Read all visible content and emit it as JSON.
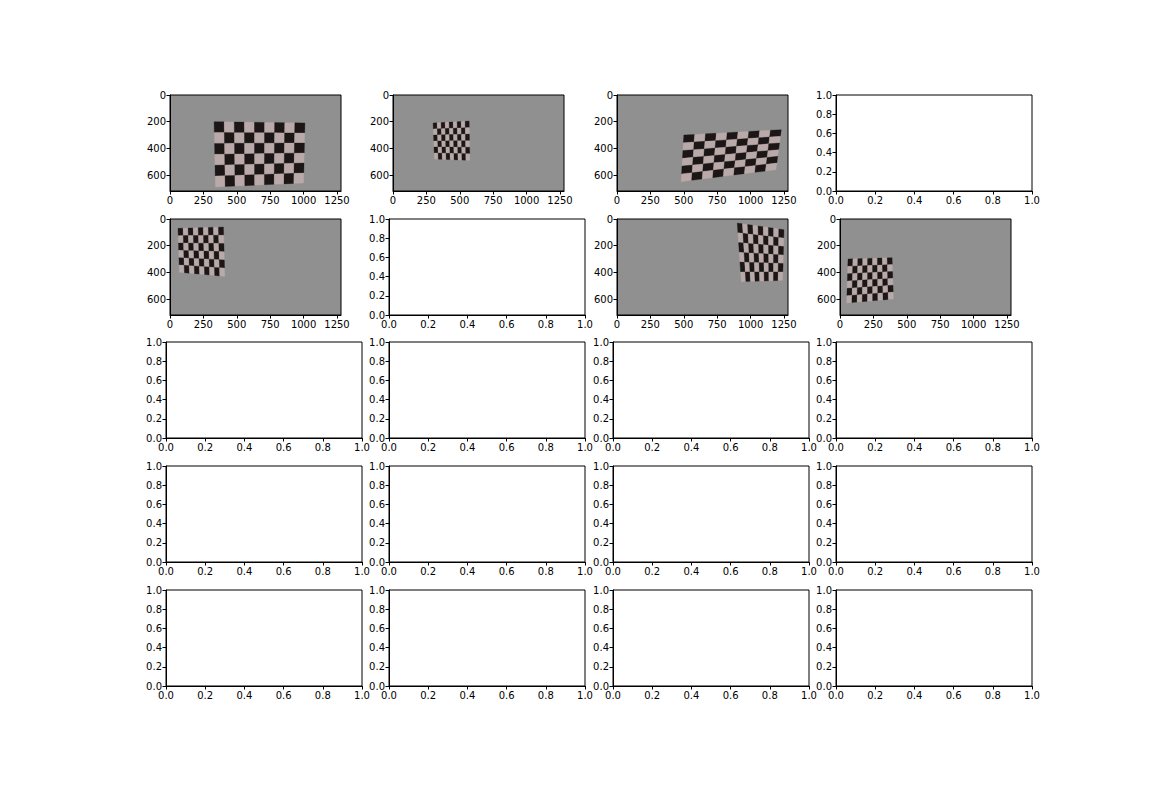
{
  "chart_data": [
    {
      "type": "image",
      "xlim": [
        0,
        1280
      ],
      "ylim": [
        720,
        0
      ],
      "xticks": [
        0,
        250,
        500,
        750,
        1000,
        1250
      ],
      "yticks": [
        0,
        200,
        400,
        600
      ],
      "board": {
        "corners": [
          [
            330,
            200
          ],
          [
            1010,
            210
          ],
          [
            1000,
            660
          ],
          [
            340,
            690
          ]
        ],
        "squares": [
          9,
          6
        ]
      }
    },
    {
      "type": "image",
      "xlim": [
        0,
        1280
      ],
      "ylim": [
        720,
        0
      ],
      "xticks": [
        0,
        250,
        500,
        750,
        1000,
        1250
      ],
      "yticks": [
        0,
        200,
        400,
        600
      ],
      "board": {
        "corners": [
          [
            300,
            210
          ],
          [
            570,
            195
          ],
          [
            575,
            490
          ],
          [
            310,
            480
          ]
        ],
        "squares": [
          9,
          6
        ]
      }
    },
    {
      "type": "image",
      "xlim": [
        0,
        1280
      ],
      "ylim": [
        720,
        0
      ],
      "xticks": [
        0,
        250,
        500,
        750,
        1000,
        1250
      ],
      "yticks": [
        0,
        200,
        400,
        600
      ],
      "board": {
        "corners": [
          [
            500,
            300
          ],
          [
            1230,
            260
          ],
          [
            1190,
            560
          ],
          [
            480,
            650
          ]
        ],
        "squares": [
          9,
          6
        ]
      }
    },
    {
      "type": "empty",
      "xlim": [
        0,
        1
      ],
      "ylim": [
        0,
        1
      ],
      "xticks": [
        {
          "value": 0,
          "label": "0.0"
        },
        {
          "value": 0.2,
          "label": "0.2"
        },
        {
          "value": 0.4,
          "label": "0.4"
        },
        {
          "value": 0.6,
          "label": "0.6"
        },
        {
          "value": 0.8,
          "label": "0.8"
        },
        {
          "value": 1,
          "label": "1.0"
        }
      ],
      "yticks": [
        {
          "value": 0,
          "label": "0.0"
        },
        {
          "value": 0.2,
          "label": "0.2"
        },
        {
          "value": 0.4,
          "label": "0.4"
        },
        {
          "value": 0.6,
          "label": "0.6"
        },
        {
          "value": 0.8,
          "label": "0.8"
        },
        {
          "value": 1,
          "label": "1.0"
        }
      ]
    },
    {
      "type": "image",
      "xlim": [
        0,
        1280
      ],
      "ylim": [
        720,
        0
      ],
      "xticks": [
        0,
        250,
        500,
        750,
        1000,
        1250
      ],
      "yticks": [
        0,
        200,
        400,
        600
      ],
      "board": {
        "corners": [
          [
            60,
            70
          ],
          [
            400,
            60
          ],
          [
            410,
            430
          ],
          [
            70,
            400
          ]
        ],
        "squares": [
          9,
          6
        ]
      }
    },
    {
      "type": "empty",
      "xlim": [
        0,
        1
      ],
      "ylim": [
        0,
        1
      ],
      "xticks": [
        {
          "value": 0,
          "label": "0.0"
        },
        {
          "value": 0.2,
          "label": "0.2"
        },
        {
          "value": 0.4,
          "label": "0.4"
        },
        {
          "value": 0.6,
          "label": "0.6"
        },
        {
          "value": 0.8,
          "label": "0.8"
        },
        {
          "value": 1,
          "label": "1.0"
        }
      ],
      "yticks": [
        {
          "value": 0,
          "label": "0.0"
        },
        {
          "value": 0.2,
          "label": "0.2"
        },
        {
          "value": 0.4,
          "label": "0.4"
        },
        {
          "value": 0.6,
          "label": "0.6"
        },
        {
          "value": 0.8,
          "label": "0.8"
        },
        {
          "value": 1,
          "label": "1.0"
        }
      ]
    },
    {
      "type": "image",
      "xlim": [
        0,
        1280
      ],
      "ylim": [
        720,
        0
      ],
      "xticks": [
        0,
        250,
        500,
        750,
        1000,
        1250
      ],
      "yticks": [
        0,
        200,
        400,
        600
      ],
      "board": {
        "corners": [
          [
            900,
            30
          ],
          [
            1250,
            80
          ],
          [
            1240,
            460
          ],
          [
            930,
            470
          ]
        ],
        "squares": [
          9,
          6
        ]
      }
    },
    {
      "type": "image",
      "xlim": [
        0,
        1280
      ],
      "ylim": [
        720,
        0
      ],
      "xticks": [
        0,
        250,
        500,
        750,
        1000,
        1250
      ],
      "yticks": [
        0,
        200,
        400,
        600
      ],
      "board": {
        "corners": [
          [
            60,
            300
          ],
          [
            390,
            290
          ],
          [
            400,
            600
          ],
          [
            50,
            630
          ]
        ],
        "squares": [
          9,
          6
        ]
      }
    },
    {
      "type": "empty",
      "xlim": [
        0,
        1
      ],
      "ylim": [
        0,
        1
      ],
      "xticks": [
        {
          "value": 0,
          "label": "0.0"
        },
        {
          "value": 0.2,
          "label": "0.2"
        },
        {
          "value": 0.4,
          "label": "0.4"
        },
        {
          "value": 0.6,
          "label": "0.6"
        },
        {
          "value": 0.8,
          "label": "0.8"
        },
        {
          "value": 1,
          "label": "1.0"
        }
      ],
      "yticks": [
        {
          "value": 0,
          "label": "0.0"
        },
        {
          "value": 0.2,
          "label": "0.2"
        },
        {
          "value": 0.4,
          "label": "0.4"
        },
        {
          "value": 0.6,
          "label": "0.6"
        },
        {
          "value": 0.8,
          "label": "0.8"
        },
        {
          "value": 1,
          "label": "1.0"
        }
      ]
    },
    {
      "type": "empty",
      "xlim": [
        0,
        1
      ],
      "ylim": [
        0,
        1
      ],
      "xticks": [
        {
          "value": 0,
          "label": "0.0"
        },
        {
          "value": 0.2,
          "label": "0.2"
        },
        {
          "value": 0.4,
          "label": "0.4"
        },
        {
          "value": 0.6,
          "label": "0.6"
        },
        {
          "value": 0.8,
          "label": "0.8"
        },
        {
          "value": 1,
          "label": "1.0"
        }
      ],
      "yticks": [
        {
          "value": 0,
          "label": "0.0"
        },
        {
          "value": 0.2,
          "label": "0.2"
        },
        {
          "value": 0.4,
          "label": "0.4"
        },
        {
          "value": 0.6,
          "label": "0.6"
        },
        {
          "value": 0.8,
          "label": "0.8"
        },
        {
          "value": 1,
          "label": "1.0"
        }
      ]
    },
    {
      "type": "empty",
      "xlim": [
        0,
        1
      ],
      "ylim": [
        0,
        1
      ],
      "xticks": [
        {
          "value": 0,
          "label": "0.0"
        },
        {
          "value": 0.2,
          "label": "0.2"
        },
        {
          "value": 0.4,
          "label": "0.4"
        },
        {
          "value": 0.6,
          "label": "0.6"
        },
        {
          "value": 0.8,
          "label": "0.8"
        },
        {
          "value": 1,
          "label": "1.0"
        }
      ],
      "yticks": [
        {
          "value": 0,
          "label": "0.0"
        },
        {
          "value": 0.2,
          "label": "0.2"
        },
        {
          "value": 0.4,
          "label": "0.4"
        },
        {
          "value": 0.6,
          "label": "0.6"
        },
        {
          "value": 0.8,
          "label": "0.8"
        },
        {
          "value": 1,
          "label": "1.0"
        }
      ]
    },
    {
      "type": "empty",
      "xlim": [
        0,
        1
      ],
      "ylim": [
        0,
        1
      ],
      "xticks": [
        {
          "value": 0,
          "label": "0.0"
        },
        {
          "value": 0.2,
          "label": "0.2"
        },
        {
          "value": 0.4,
          "label": "0.4"
        },
        {
          "value": 0.6,
          "label": "0.6"
        },
        {
          "value": 0.8,
          "label": "0.8"
        },
        {
          "value": 1,
          "label": "1.0"
        }
      ],
      "yticks": [
        {
          "value": 0,
          "label": "0.0"
        },
        {
          "value": 0.2,
          "label": "0.2"
        },
        {
          "value": 0.4,
          "label": "0.4"
        },
        {
          "value": 0.6,
          "label": "0.6"
        },
        {
          "value": 0.8,
          "label": "0.8"
        },
        {
          "value": 1,
          "label": "1.0"
        }
      ]
    },
    {
      "type": "empty",
      "xlim": [
        0,
        1
      ],
      "ylim": [
        0,
        1
      ],
      "xticks": [
        {
          "value": 0,
          "label": "0.0"
        },
        {
          "value": 0.2,
          "label": "0.2"
        },
        {
          "value": 0.4,
          "label": "0.4"
        },
        {
          "value": 0.6,
          "label": "0.6"
        },
        {
          "value": 0.8,
          "label": "0.8"
        },
        {
          "value": 1,
          "label": "1.0"
        }
      ],
      "yticks": [
        {
          "value": 0,
          "label": "0.0"
        },
        {
          "value": 0.2,
          "label": "0.2"
        },
        {
          "value": 0.4,
          "label": "0.4"
        },
        {
          "value": 0.6,
          "label": "0.6"
        },
        {
          "value": 0.8,
          "label": "0.8"
        },
        {
          "value": 1,
          "label": "1.0"
        }
      ]
    },
    {
      "type": "empty",
      "xlim": [
        0,
        1
      ],
      "ylim": [
        0,
        1
      ],
      "xticks": [
        {
          "value": 0,
          "label": "0.0"
        },
        {
          "value": 0.2,
          "label": "0.2"
        },
        {
          "value": 0.4,
          "label": "0.4"
        },
        {
          "value": 0.6,
          "label": "0.6"
        },
        {
          "value": 0.8,
          "label": "0.8"
        },
        {
          "value": 1,
          "label": "1.0"
        }
      ],
      "yticks": [
        {
          "value": 0,
          "label": "0.0"
        },
        {
          "value": 0.2,
          "label": "0.2"
        },
        {
          "value": 0.4,
          "label": "0.4"
        },
        {
          "value": 0.6,
          "label": "0.6"
        },
        {
          "value": 0.8,
          "label": "0.8"
        },
        {
          "value": 1,
          "label": "1.0"
        }
      ]
    },
    {
      "type": "empty",
      "xlim": [
        0,
        1
      ],
      "ylim": [
        0,
        1
      ],
      "xticks": [
        {
          "value": 0,
          "label": "0.0"
        },
        {
          "value": 0.2,
          "label": "0.2"
        },
        {
          "value": 0.4,
          "label": "0.4"
        },
        {
          "value": 0.6,
          "label": "0.6"
        },
        {
          "value": 0.8,
          "label": "0.8"
        },
        {
          "value": 1,
          "label": "1.0"
        }
      ],
      "yticks": [
        {
          "value": 0,
          "label": "0.0"
        },
        {
          "value": 0.2,
          "label": "0.2"
        },
        {
          "value": 0.4,
          "label": "0.4"
        },
        {
          "value": 0.6,
          "label": "0.6"
        },
        {
          "value": 0.8,
          "label": "0.8"
        },
        {
          "value": 1,
          "label": "1.0"
        }
      ]
    },
    {
      "type": "empty",
      "xlim": [
        0,
        1
      ],
      "ylim": [
        0,
        1
      ],
      "xticks": [
        {
          "value": 0,
          "label": "0.0"
        },
        {
          "value": 0.2,
          "label": "0.2"
        },
        {
          "value": 0.4,
          "label": "0.4"
        },
        {
          "value": 0.6,
          "label": "0.6"
        },
        {
          "value": 0.8,
          "label": "0.8"
        },
        {
          "value": 1,
          "label": "1.0"
        }
      ],
      "yticks": [
        {
          "value": 0,
          "label": "0.0"
        },
        {
          "value": 0.2,
          "label": "0.2"
        },
        {
          "value": 0.4,
          "label": "0.4"
        },
        {
          "value": 0.6,
          "label": "0.6"
        },
        {
          "value": 0.8,
          "label": "0.8"
        },
        {
          "value": 1,
          "label": "1.0"
        }
      ]
    },
    {
      "type": "empty",
      "xlim": [
        0,
        1
      ],
      "ylim": [
        0,
        1
      ],
      "xticks": [
        {
          "value": 0,
          "label": "0.0"
        },
        {
          "value": 0.2,
          "label": "0.2"
        },
        {
          "value": 0.4,
          "label": "0.4"
        },
        {
          "value": 0.6,
          "label": "0.6"
        },
        {
          "value": 0.8,
          "label": "0.8"
        },
        {
          "value": 1,
          "label": "1.0"
        }
      ],
      "yticks": [
        {
          "value": 0,
          "label": "0.0"
        },
        {
          "value": 0.2,
          "label": "0.2"
        },
        {
          "value": 0.4,
          "label": "0.4"
        },
        {
          "value": 0.6,
          "label": "0.6"
        },
        {
          "value": 0.8,
          "label": "0.8"
        },
        {
          "value": 1,
          "label": "1.0"
        }
      ]
    },
    {
      "type": "empty",
      "xlim": [
        0,
        1
      ],
      "ylim": [
        0,
        1
      ],
      "xticks": [
        {
          "value": 0,
          "label": "0.0"
        },
        {
          "value": 0.2,
          "label": "0.2"
        },
        {
          "value": 0.4,
          "label": "0.4"
        },
        {
          "value": 0.6,
          "label": "0.6"
        },
        {
          "value": 0.8,
          "label": "0.8"
        },
        {
          "value": 1,
          "label": "1.0"
        }
      ],
      "yticks": [
        {
          "value": 0,
          "label": "0.0"
        },
        {
          "value": 0.2,
          "label": "0.2"
        },
        {
          "value": 0.4,
          "label": "0.4"
        },
        {
          "value": 0.6,
          "label": "0.6"
        },
        {
          "value": 0.8,
          "label": "0.8"
        },
        {
          "value": 1,
          "label": "1.0"
        }
      ]
    },
    {
      "type": "empty",
      "xlim": [
        0,
        1
      ],
      "ylim": [
        0,
        1
      ],
      "xticks": [
        {
          "value": 0,
          "label": "0.0"
        },
        {
          "value": 0.2,
          "label": "0.2"
        },
        {
          "value": 0.4,
          "label": "0.4"
        },
        {
          "value": 0.6,
          "label": "0.6"
        },
        {
          "value": 0.8,
          "label": "0.8"
        },
        {
          "value": 1,
          "label": "1.0"
        }
      ],
      "yticks": [
        {
          "value": 0,
          "label": "0.0"
        },
        {
          "value": 0.2,
          "label": "0.2"
        },
        {
          "value": 0.4,
          "label": "0.4"
        },
        {
          "value": 0.6,
          "label": "0.6"
        },
        {
          "value": 0.8,
          "label": "0.8"
        },
        {
          "value": 1,
          "label": "1.0"
        }
      ]
    },
    {
      "type": "empty",
      "xlim": [
        0,
        1
      ],
      "ylim": [
        0,
        1
      ],
      "xticks": [
        {
          "value": 0,
          "label": "0.0"
        },
        {
          "value": 0.2,
          "label": "0.2"
        },
        {
          "value": 0.4,
          "label": "0.4"
        },
        {
          "value": 0.6,
          "label": "0.6"
        },
        {
          "value": 0.8,
          "label": "0.8"
        },
        {
          "value": 1,
          "label": "1.0"
        }
      ],
      "yticks": [
        {
          "value": 0,
          "label": "0.0"
        },
        {
          "value": 0.2,
          "label": "0.2"
        },
        {
          "value": 0.4,
          "label": "0.4"
        },
        {
          "value": 0.6,
          "label": "0.6"
        },
        {
          "value": 0.8,
          "label": "0.8"
        },
        {
          "value": 1,
          "label": "1.0"
        }
      ]
    }
  ]
}
